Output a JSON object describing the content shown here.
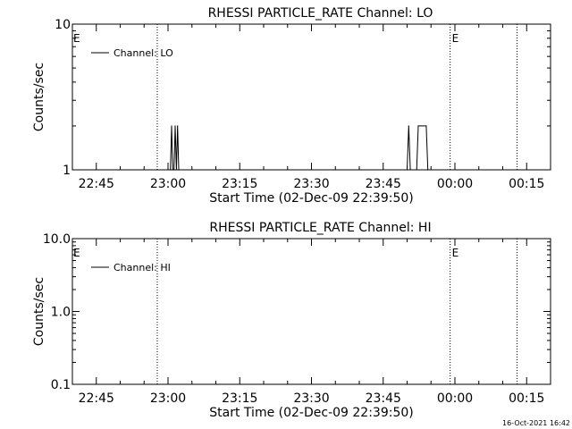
{
  "chart_data": [
    {
      "type": "line",
      "title": "RHESSI PARTICLE_RATE Channel: LO",
      "xlabel": "Start Time (02-Dec-09 22:39:50)",
      "ylabel": "Counts/sec",
      "yscale": "log",
      "ylim": [
        1,
        10
      ],
      "xlim": [
        "22:40",
        "00:20"
      ],
      "ytick_labels": [
        "1",
        "10"
      ],
      "xtick_labels": [
        "22:45",
        "23:00",
        "23:15",
        "23:30",
        "23:45",
        "00:00",
        "00:15"
      ],
      "legend_placement": "top-left",
      "series": [
        {
          "name": "Channel: LO",
          "x": [
            "23:00:30",
            "23:00:45",
            "23:01:00",
            "23:01:15",
            "23:01:30",
            "23:01:45",
            "23:02:00",
            "23:02:15",
            "23:50:00",
            "23:50:20",
            "23:50:40",
            "23:52:00",
            "23:52:20",
            "23:54:00",
            "23:54:20"
          ],
          "y": [
            1,
            2,
            1,
            1,
            2,
            1,
            2,
            1,
            1,
            2,
            1,
            1,
            2,
            2,
            1
          ]
        }
      ],
      "vlines": [
        {
          "x": "22:57:45",
          "label": ""
        },
        {
          "x": "23:59:00",
          "label": "E"
        },
        {
          "x": "00:13:00",
          "label": ""
        }
      ],
      "edge_marker": "E"
    },
    {
      "type": "line",
      "title": "RHESSI PARTICLE_RATE Channel: HI",
      "xlabel": "Start Time (02-Dec-09 22:39:50)",
      "ylabel": "Counts/sec",
      "yscale": "log",
      "ylim": [
        0.1,
        10
      ],
      "xlim": [
        "22:40",
        "00:20"
      ],
      "ytick_labels": [
        "0.1",
        "1.0",
        "10.0"
      ],
      "xtick_labels": [
        "22:45",
        "23:00",
        "23:15",
        "23:30",
        "23:45",
        "00:00",
        "00:15"
      ],
      "legend_placement": "top-left",
      "series": [
        {
          "name": "Channel: HI",
          "x": [],
          "y": []
        }
      ],
      "vlines": [
        {
          "x": "22:57:45",
          "label": ""
        },
        {
          "x": "23:59:00",
          "label": "E"
        },
        {
          "x": "00:13:00",
          "label": ""
        }
      ],
      "edge_marker": "E"
    }
  ],
  "footer": {
    "timestamp": "16-Oct-2021 16:42"
  }
}
